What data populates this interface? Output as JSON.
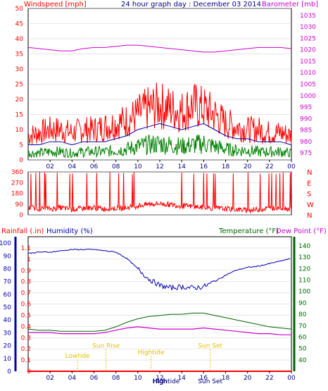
{
  "colors": {
    "windspeed": "#ff0000",
    "windgust": "#008000",
    "winddir": "#ff0000",
    "barometer": "#cc00cc",
    "rainfall": "#ff0000",
    "humidity": "#0000aa",
    "temperature": "#006600",
    "dewpoint": "#cc00cc",
    "astro": "#e0c000",
    "frame": "#000000",
    "grid": "#cccccc"
  },
  "header": {
    "wind_label": "Windspeed [mph]",
    "title": "24 hour graph day : December 03 2014",
    "baro_label": "Barometer [mb]"
  },
  "lower_header": {
    "rain_label": "Rainfall (.in)",
    "humidity_label": "Humidity (%)",
    "temp_label": "Temperature (°F)",
    "dew_label": "Dew Point (°F)"
  },
  "chart_data": [
    {
      "type": "line",
      "panel": "wind-barometer",
      "x_ticks": [
        "02",
        "04",
        "06",
        "08",
        "10",
        "12",
        "14",
        "16",
        "18",
        "20",
        "22",
        "00"
      ],
      "y_left": {
        "label": "Windspeed [mph]",
        "ticks": [
          0,
          5,
          10,
          15,
          20,
          25,
          30,
          35,
          40,
          45,
          50
        ],
        "ylim": [
          0,
          50
        ]
      },
      "y_right": {
        "label": "Barometer [mb]",
        "ticks": [
          975,
          980,
          985,
          990,
          995,
          1000,
          1005,
          1010,
          1015,
          1020,
          1025,
          1030,
          1035
        ],
        "ylim": [
          972,
          1038
        ]
      },
      "series": [
        {
          "name": "Windspeed",
          "axis": "left",
          "x": [
            0,
            1,
            2,
            3,
            4,
            5,
            6,
            7,
            8,
            9,
            10,
            11,
            12,
            13,
            14,
            15,
            16,
            17,
            18,
            19,
            20,
            21,
            22,
            23,
            24
          ],
          "values": [
            5,
            5,
            6,
            6,
            5,
            6,
            6,
            6,
            7,
            8,
            10,
            11,
            12,
            11,
            10,
            11,
            12,
            10,
            8,
            7,
            7,
            6,
            6,
            6,
            5
          ]
        },
        {
          "name": "Wind Gust",
          "axis": "left",
          "x": [
            0,
            1,
            2,
            3,
            4,
            5,
            6,
            7,
            8,
            9,
            10,
            11,
            12,
            13,
            14,
            15,
            16,
            17,
            18,
            19,
            20,
            21,
            22,
            23,
            24
          ],
          "values": [
            8,
            9,
            10,
            10,
            9,
            10,
            10,
            11,
            12,
            13,
            15,
            17,
            18,
            17,
            16,
            18,
            17,
            15,
            12,
            11,
            10,
            10,
            9,
            9,
            8
          ]
        },
        {
          "name": "Barometer",
          "axis": "right",
          "x": [
            0,
            1,
            2,
            3,
            4,
            5,
            6,
            7,
            8,
            9,
            10,
            11,
            12,
            13,
            14,
            15,
            16,
            17,
            18,
            19,
            20,
            21,
            22,
            23,
            24
          ],
          "values": [
            1021,
            1020.5,
            1020,
            1019.5,
            1019.5,
            1020.5,
            1021,
            1021,
            1021.5,
            1022,
            1022,
            1021.5,
            1021,
            1020.5,
            1020,
            1019.5,
            1019,
            1019,
            1019.5,
            1020,
            1020.5,
            1021,
            1021,
            1021,
            1020.5
          ]
        }
      ]
    },
    {
      "type": "line",
      "panel": "wind-direction",
      "x_ticks": [
        "02",
        "04",
        "06",
        "08",
        "10",
        "12",
        "14",
        "16",
        "18",
        "20",
        "22",
        "00"
      ],
      "y_left": {
        "ticks": [
          0,
          90,
          180,
          270,
          360
        ],
        "ylim": [
          0,
          360
        ]
      },
      "y_right": {
        "ticks": [
          "N",
          "W",
          "S",
          "E",
          "N"
        ]
      },
      "series": [
        {
          "name": "Wind Direction",
          "x": [
            0,
            1,
            2,
            3,
            4,
            5,
            6,
            7,
            8,
            9,
            10,
            11,
            12,
            13,
            14,
            15,
            16,
            17,
            18,
            19,
            20,
            21,
            22,
            23,
            24
          ],
          "values": [
            60,
            55,
            50,
            60,
            45,
            55,
            60,
            50,
            55,
            60,
            75,
            90,
            95,
            85,
            75,
            70,
            60,
            55,
            50,
            45,
            40,
            45,
            55,
            60,
            50
          ]
        }
      ]
    },
    {
      "type": "line",
      "panel": "rain-humidity-temp",
      "x_ticks": [
        "02",
        "04",
        "06",
        "08",
        "10",
        "12",
        "14",
        "16",
        "18",
        "20",
        "22",
        "00"
      ],
      "y_rain": {
        "label": "Rainfall (.in)",
        "ticks": [
          0,
          0.1,
          0.2,
          0.3,
          0.4,
          0.5,
          0.6,
          0.7,
          0.8,
          0.9,
          1,
          1.1
        ],
        "ylim": [
          0,
          1.2
        ]
      },
      "y_humidity": {
        "label": "Humidity (%)",
        "ticks": [
          0,
          10,
          20,
          30,
          40,
          50,
          60,
          70,
          80,
          90,
          100
        ],
        "ylim": [
          0,
          105
        ]
      },
      "y_temp": {
        "label": "Temperature (°F)",
        "ticks": [
          40,
          50,
          60,
          70,
          80,
          90,
          100,
          110,
          120,
          130,
          140
        ],
        "ylim": [
          30,
          148
        ]
      },
      "series": [
        {
          "name": "Rainfall",
          "axis": "rain",
          "x": [
            0,
            24
          ],
          "values": [
            0,
            0
          ]
        },
        {
          "name": "Humidity",
          "axis": "humidity",
          "x": [
            0,
            1,
            2,
            3,
            4,
            5,
            6,
            7,
            8,
            9,
            10,
            11,
            12,
            13,
            14,
            15,
            16,
            17,
            18,
            19,
            20,
            21,
            22,
            23,
            24
          ],
          "values": [
            92,
            93,
            93,
            94,
            95,
            95,
            95,
            94,
            93,
            88,
            80,
            72,
            67,
            65,
            66,
            65,
            66,
            70,
            75,
            79,
            81,
            82,
            84,
            86,
            88
          ]
        },
        {
          "name": "Temperature",
          "axis": "temp",
          "x": [
            0,
            1,
            2,
            3,
            4,
            5,
            6,
            7,
            8,
            9,
            10,
            11,
            12,
            13,
            14,
            15,
            16,
            17,
            18,
            19,
            20,
            21,
            22,
            23,
            24
          ],
          "values": [
            67,
            66,
            66,
            65,
            65,
            65,
            65,
            66,
            69,
            73,
            76,
            78,
            79,
            80,
            80,
            81,
            81,
            79,
            77,
            75,
            73,
            71,
            69,
            68,
            67
          ]
        },
        {
          "name": "Dew Point",
          "axis": "temp",
          "x": [
            0,
            1,
            2,
            3,
            4,
            5,
            6,
            7,
            8,
            9,
            10,
            11,
            12,
            13,
            14,
            15,
            16,
            17,
            18,
            19,
            20,
            21,
            22,
            23,
            24
          ],
          "values": [
            64,
            64,
            64,
            63,
            63,
            63,
            63,
            64,
            66,
            68,
            69,
            68,
            67,
            67,
            67,
            67,
            68,
            67,
            66,
            65,
            64,
            63,
            63,
            62,
            62
          ]
        }
      ],
      "annotations": [
        {
          "label": "Lowtide",
          "hour": 4.5,
          "value": 0.12
        },
        {
          "label": "Sun Rise",
          "hour": 7.1,
          "value": 0.21
        },
        {
          "label": "Hightide",
          "hour": 11.2,
          "value": 0.15
        },
        {
          "label": "High",
          "hour": 12,
          "value": 0
        },
        {
          "label": "Hightide",
          "hour": 12.6,
          "value": 0
        },
        {
          "label": "Sun Set",
          "hour": 16.6,
          "value": 0.21
        },
        {
          "label": "Sun Set",
          "hour": 16.6,
          "value": 0
        }
      ]
    }
  ]
}
